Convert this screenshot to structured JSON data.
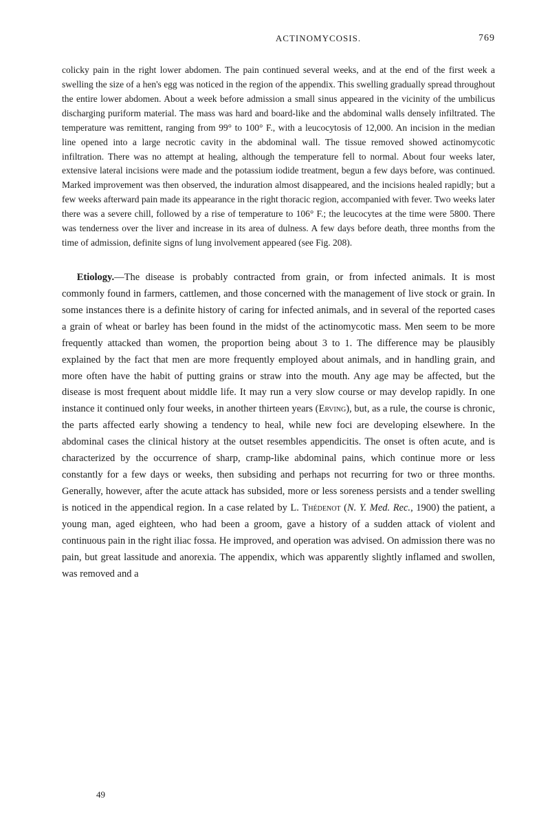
{
  "header": {
    "title": "ACTINOMYCOSIS.",
    "page": "769"
  },
  "paragraphs": {
    "p1": "colicky pain in the right lower abdomen. The pain continued several weeks, and at the end of the first week a swelling the size of a hen's egg was noticed in the region of the appendix. This swelling gradually spread throughout the entire lower abdomen. About a week before admission a small sinus appeared in the vicinity of the umbilicus discharging puriform material. The mass was hard and board-like and the abdominal walls densely infiltrated. The temperature was remittent, ranging from 99° to 100° F., with a leucocytosis of 12,000. An incision in the median line opened into a large necrotic cavity in the abdominal wall. The tissue removed showed actinomycotic infiltration. There was no attempt at healing, although the temperature fell to normal. About four weeks later, extensive lateral incisions were made and the potassium iodide treatment, begun a few days before, was continued. Marked improvement was then observed, the induration almost disappeared, and the incisions healed rapidly; but a few weeks afterward pain made its appearance in the right thoracic region, accompanied with fever. Two weeks later there was a severe chill, followed by a rise of temperature to 106° F.; the leucocytes at the time were 5800. There was tenderness over the liver and increase in its area of dulness. A few days before death, three months from the time of admission, definite signs of lung involvement appeared (see Fig. 208).",
    "p2_lede": "Etiology.",
    "p2_body": "—The disease is probably contracted from grain, or from infected animals. It is most commonly found in farmers, cattlemen, and those concerned with the management of live stock or grain. In some instances there is a definite history of caring for infected animals, and in several of the reported cases a grain of wheat or barley has been found in the midst of the actinomycotic mass. Men seem to be more frequently attacked than women, the proportion being about 3 to 1. The difference may be plausibly explained by the fact that men are more frequently employed about animals, and in handling grain, and more often have the habit of putting grains or straw into the mouth. Any age may be affected, but the disease is most frequent about middle life. It may run a very slow course or may develop rapidly. In one instance it continued only four weeks, in another thirteen years (",
    "p2_erving": "Erving",
    "p2_body2": "), but, as a rule, the course is chronic, the parts affected early showing a tendency to heal, while new foci are developing elsewhere. In the abdominal cases the clinical history at the outset resembles appendicitis. The onset is often acute, and is characterized by the occurrence of sharp, cramp-like abdominal pains, which continue more or less constantly for a few days or weeks, then subsiding and perhaps not recurring for two or three months. Generally, however, after the acute attack has subsided, more or less soreness persists and a tender swelling is noticed in the appendical region. In a case related by L. ",
    "p2_thedenot": "Thédenot",
    "p2_cite_open": " (",
    "p2_cite_italic": "N. Y. Med. Rec.",
    "p2_body3": ", 1900) the patient, a young man, aged eighteen, who had been a groom, gave a history of a sudden attack of violent and continuous pain in the right iliac fossa. He improved, and operation was advised. On admission there was no pain, but great lassitude and anorexia. The appendix, which was apparently slightly inflamed and swollen, was removed and a"
  },
  "footer": {
    "num": "49"
  }
}
